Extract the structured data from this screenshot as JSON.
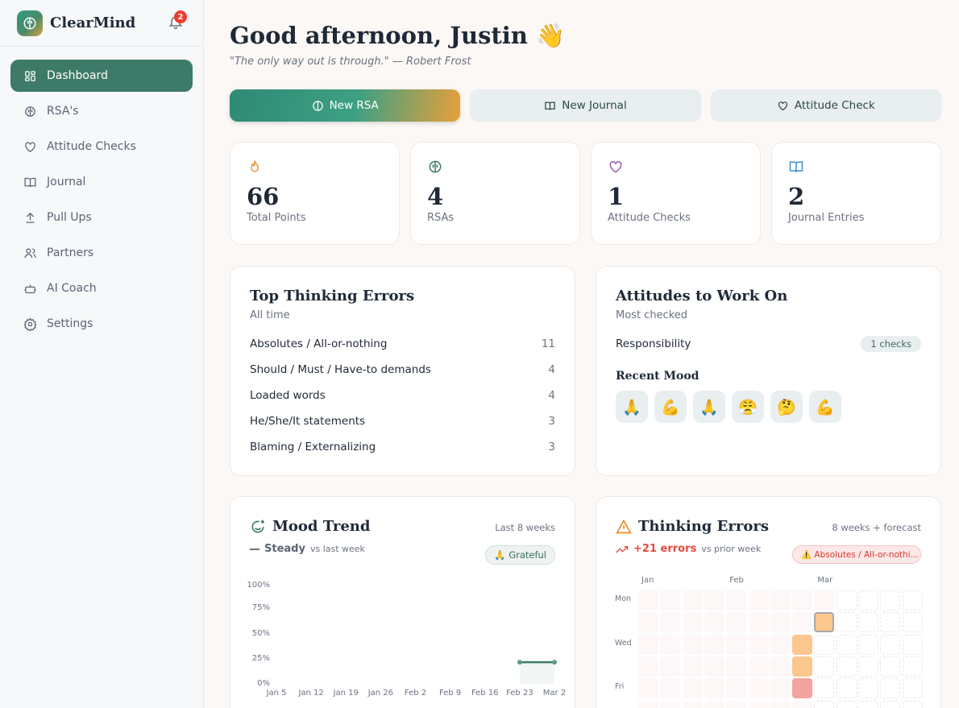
{
  "app": {
    "name": "ClearMind",
    "notifications": "2"
  },
  "sidebar": {
    "items": [
      {
        "label": "Dashboard",
        "icon": "dashboard-icon",
        "active": true
      },
      {
        "label": "RSA's",
        "icon": "brain-icon"
      },
      {
        "label": "Attitude Checks",
        "icon": "heart-icon"
      },
      {
        "label": "Journal",
        "icon": "book-icon"
      },
      {
        "label": "Pull Ups",
        "icon": "upload-icon"
      },
      {
        "label": "Partners",
        "icon": "users-icon"
      },
      {
        "label": "AI Coach",
        "icon": "bot-icon"
      },
      {
        "label": "Settings",
        "icon": "gear-icon"
      }
    ]
  },
  "header": {
    "greeting": "Good afternoon, Justin",
    "wave": "👋",
    "quote": "\"The only way out is through.\" — Robert Frost"
  },
  "actions": {
    "new_rsa": "New RSA",
    "new_journal": "New Journal",
    "attitude_check": "Attitude Check"
  },
  "stats": [
    {
      "value": "66",
      "label": "Total Points",
      "color": "#e8923a"
    },
    {
      "value": "4",
      "label": "RSAs",
      "color": "#3d7a68"
    },
    {
      "value": "1",
      "label": "Attitude Checks",
      "color": "#9b59b6"
    },
    {
      "value": "2",
      "label": "Journal Entries",
      "color": "#3b8ed6"
    }
  ],
  "top_errors": {
    "title": "Top Thinking Errors",
    "subtitle": "All time",
    "items": [
      {
        "name": "Absolutes / All-or-nothing",
        "count": "11"
      },
      {
        "name": "Should / Must / Have-to demands",
        "count": "4"
      },
      {
        "name": "Loaded words",
        "count": "4"
      },
      {
        "name": "He/She/It statements",
        "count": "3"
      },
      {
        "name": "Blaming / Externalizing",
        "count": "3"
      }
    ]
  },
  "attitudes": {
    "title": "Attitudes to Work On",
    "subtitle": "Most checked",
    "item": "Responsibility",
    "checks": "1 checks",
    "recent_mood_title": "Recent Mood",
    "moods": [
      "🙏",
      "💪",
      "🙏",
      "😤",
      "🤔",
      "💪"
    ]
  },
  "mood_trend": {
    "title": "Mood Trend",
    "range": "Last 8 weeks",
    "trend": "Steady",
    "trend_note": "vs last week",
    "top_mood": "🙏 Grateful"
  },
  "thinking_errors": {
    "title": "Thinking Errors",
    "range": "8 weeks + forecast",
    "delta": "+21 errors",
    "delta_note": "vs prior week",
    "top_error": "⚠️ Absolutes / All-or-nothi...",
    "months": [
      "Jan",
      "Feb",
      "Mar"
    ],
    "days": [
      "Mon",
      "",
      "Wed",
      "",
      "Fri",
      "",
      ""
    ]
  },
  "chart_data": [
    {
      "type": "line",
      "title": "Mood Trend",
      "x": [
        "Jan 5",
        "Jan 12",
        "Jan 19",
        "Jan 26",
        "Feb 2",
        "Feb 9",
        "Feb 16",
        "Feb 23",
        "Mar 2"
      ],
      "values": [
        null,
        null,
        null,
        null,
        null,
        null,
        null,
        22,
        22
      ],
      "yticks": [
        "100%",
        "75%",
        "50%",
        "25%",
        "0%"
      ],
      "ylim": [
        0,
        100
      ],
      "color": "#3d7a68"
    },
    {
      "type": "heatmap",
      "title": "Thinking Errors",
      "weeks": 13,
      "forecast_weeks": 4,
      "cells": [
        {
          "week": 7,
          "day": 2,
          "level": "medium"
        },
        {
          "week": 7,
          "day": 3,
          "level": "medium"
        },
        {
          "week": 7,
          "day": 4,
          "level": "high"
        },
        {
          "week": 8,
          "day": 1,
          "level": "medium",
          "today": true
        }
      ],
      "colors": {
        "empty": "#fdf7f7",
        "medium": "#fcc78e",
        "high": "#f4a3a0"
      }
    }
  ]
}
